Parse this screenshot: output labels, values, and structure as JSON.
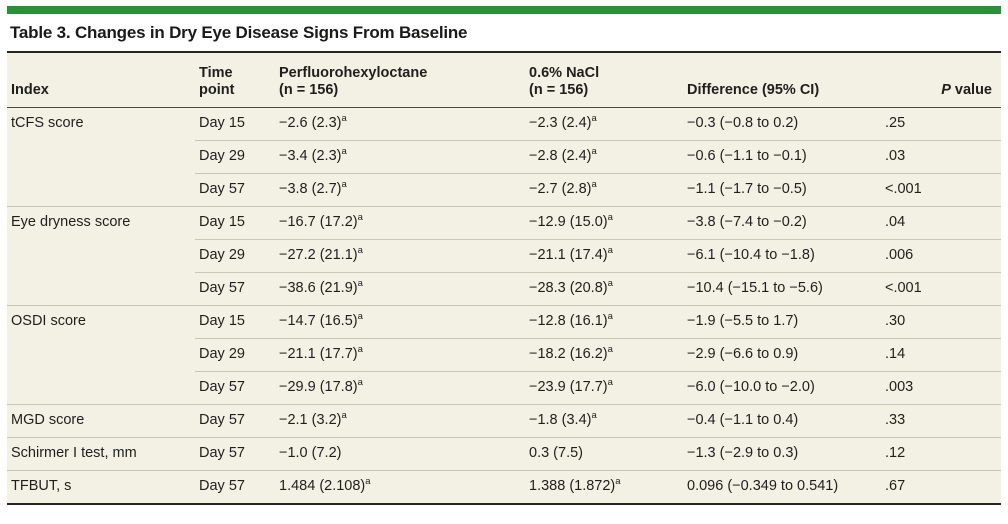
{
  "title": "Table 3. Changes in Dry Eye Disease Signs From Baseline",
  "colors": {
    "accent_green": "#2b9138",
    "table_background": "#f3f0e4"
  },
  "table": {
    "headers": {
      "index": "Index",
      "time_line1": "Time",
      "time_line2": "point",
      "pfh_line1": "Perfluorohexyloctane",
      "pfh_line2": "(n = 156)",
      "nacl_line1": "0.6% NaCl",
      "nacl_line2": "(n = 156)",
      "diff": "Difference (95% CI)",
      "p_italic": "P",
      "p_rest": "value"
    },
    "rows": [
      {
        "index": "tCFS score",
        "time": "Day 15",
        "pfh": "−2.6 (2.3)",
        "pfh_sup": "a",
        "nacl": "−2.3 (2.4)",
        "nacl_sup": "a",
        "diff": "−0.3 (−0.8 to 0.2)",
        "p": ".25"
      },
      {
        "index": "",
        "time": "Day 29",
        "pfh": "−3.4 (2.3)",
        "pfh_sup": "a",
        "nacl": "−2.8 (2.4)",
        "nacl_sup": "a",
        "diff": "−0.6 (−1.1 to −0.1)",
        "p": ".03"
      },
      {
        "index": "",
        "time": "Day 57",
        "pfh": "−3.8 (2.7)",
        "pfh_sup": "a",
        "nacl": "−2.7 (2.8)",
        "nacl_sup": "a",
        "diff": "−1.1 (−1.7 to −0.5)",
        "p": "<.001"
      },
      {
        "index": "Eye dryness score",
        "time": "Day 15",
        "pfh": "−16.7 (17.2)",
        "pfh_sup": "a",
        "nacl": "−12.9 (15.0)",
        "nacl_sup": "a",
        "diff": "−3.8 (−7.4 to −0.2)",
        "p": ".04"
      },
      {
        "index": "",
        "time": "Day 29",
        "pfh": "−27.2 (21.1)",
        "pfh_sup": "a",
        "nacl": "−21.1 (17.4)",
        "nacl_sup": "a",
        "diff": "−6.1 (−10.4 to −1.8)",
        "p": ".006"
      },
      {
        "index": "",
        "time": "Day 57",
        "pfh": "−38.6 (21.9)",
        "pfh_sup": "a",
        "nacl": "−28.3 (20.8)",
        "nacl_sup": "a",
        "diff": "−10.4 (−15.1 to −5.6)",
        "p": "<.001"
      },
      {
        "index": "OSDI score",
        "time": "Day 15",
        "pfh": "−14.7 (16.5)",
        "pfh_sup": "a",
        "nacl": "−12.8 (16.1)",
        "nacl_sup": "a",
        "diff": "−1.9 (−5.5 to 1.7)",
        "p": ".30"
      },
      {
        "index": "",
        "time": "Day 29",
        "pfh": "−21.1 (17.7)",
        "pfh_sup": "a",
        "nacl": "−18.2 (16.2)",
        "nacl_sup": "a",
        "diff": "−2.9 (−6.6 to 0.9)",
        "p": ".14"
      },
      {
        "index": "",
        "time": "Day 57",
        "pfh": "−29.9 (17.8)",
        "pfh_sup": "a",
        "nacl": "−23.9 (17.7)",
        "nacl_sup": "a",
        "diff": "−6.0 (−10.0 to −2.0)",
        "p": ".003"
      },
      {
        "index": "MGD score",
        "time": "Day 57",
        "pfh": "−2.1 (3.2)",
        "pfh_sup": "a",
        "nacl": "−1.8 (3.4)",
        "nacl_sup": "a",
        "diff": "−0.4 (−1.1 to 0.4)",
        "p": ".33"
      },
      {
        "index": "Schirmer I test, mm",
        "time": "Day 57",
        "pfh": "−1.0 (7.2)",
        "pfh_sup": "",
        "nacl": "0.3 (7.5)",
        "nacl_sup": "",
        "diff": "−1.3 (−2.9 to 0.3)",
        "p": ".12"
      },
      {
        "index": "TFBUT, s",
        "time": "Day 57",
        "pfh": "1.484 (2.108)",
        "pfh_sup": "a",
        "nacl": "1.388 (1.872)",
        "nacl_sup": "a",
        "diff": "0.096 (−0.349 to 0.541)",
        "p": ".67"
      }
    ]
  }
}
